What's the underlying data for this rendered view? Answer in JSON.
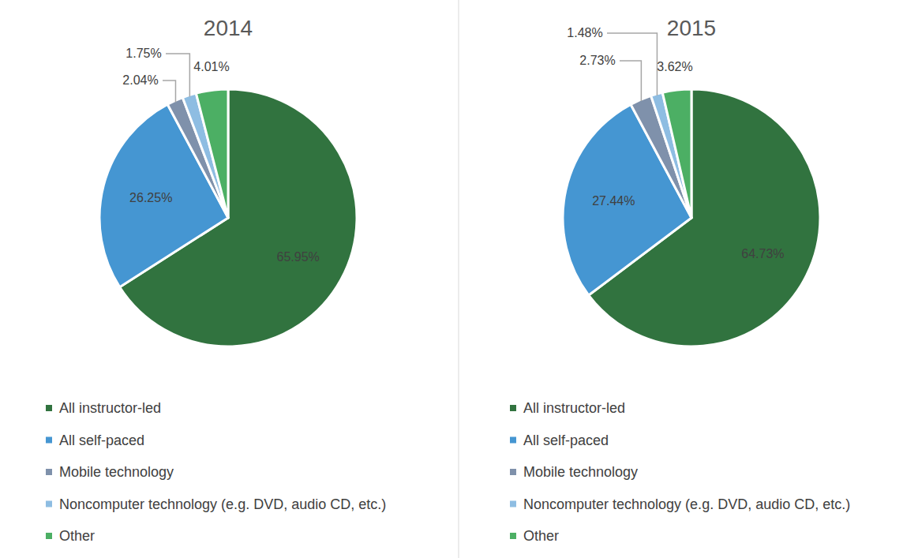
{
  "chart_data": [
    {
      "type": "pie",
      "title": "2014",
      "categories": [
        "All instructor-led",
        "All self-paced",
        "Mobile technology",
        "Noncomputer technology (e.g. DVD, audio CD, etc.)",
        "Other"
      ],
      "values": [
        65.95,
        26.25,
        2.04,
        1.75,
        4.01
      ],
      "value_labels": [
        "65.95%",
        "26.25%",
        "2.04%",
        "1.75%",
        "4.01%"
      ],
      "colors": [
        "#31733f",
        "#4596d2",
        "#7f91ab",
        "#8ebde2",
        "#4caf64"
      ],
      "data_labels": true,
      "legend": "bottom"
    },
    {
      "type": "pie",
      "title": "2015",
      "categories": [
        "All instructor-led",
        "All self-paced",
        "Mobile technology",
        "Noncomputer technology (e.g. DVD, audio CD, etc.)",
        "Other"
      ],
      "values": [
        64.73,
        27.44,
        2.73,
        1.48,
        3.62
      ],
      "value_labels": [
        "64.73%",
        "27.44%",
        "2.73%",
        "1.48%",
        "3.62%"
      ],
      "colors": [
        "#31733f",
        "#4596d2",
        "#7f91ab",
        "#8ebde2",
        "#4caf64"
      ],
      "data_labels": true,
      "legend": "bottom"
    }
  ]
}
